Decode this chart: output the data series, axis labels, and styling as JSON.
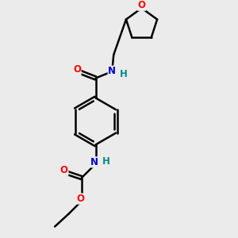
{
  "background_color": "#ebebeb",
  "bond_color": "#000000",
  "atom_colors": {
    "O": "#ff0000",
    "N": "#0000cd",
    "H": "#008b8b",
    "C": "#000000"
  },
  "figsize": [
    3.0,
    3.0
  ],
  "dpi": 100
}
